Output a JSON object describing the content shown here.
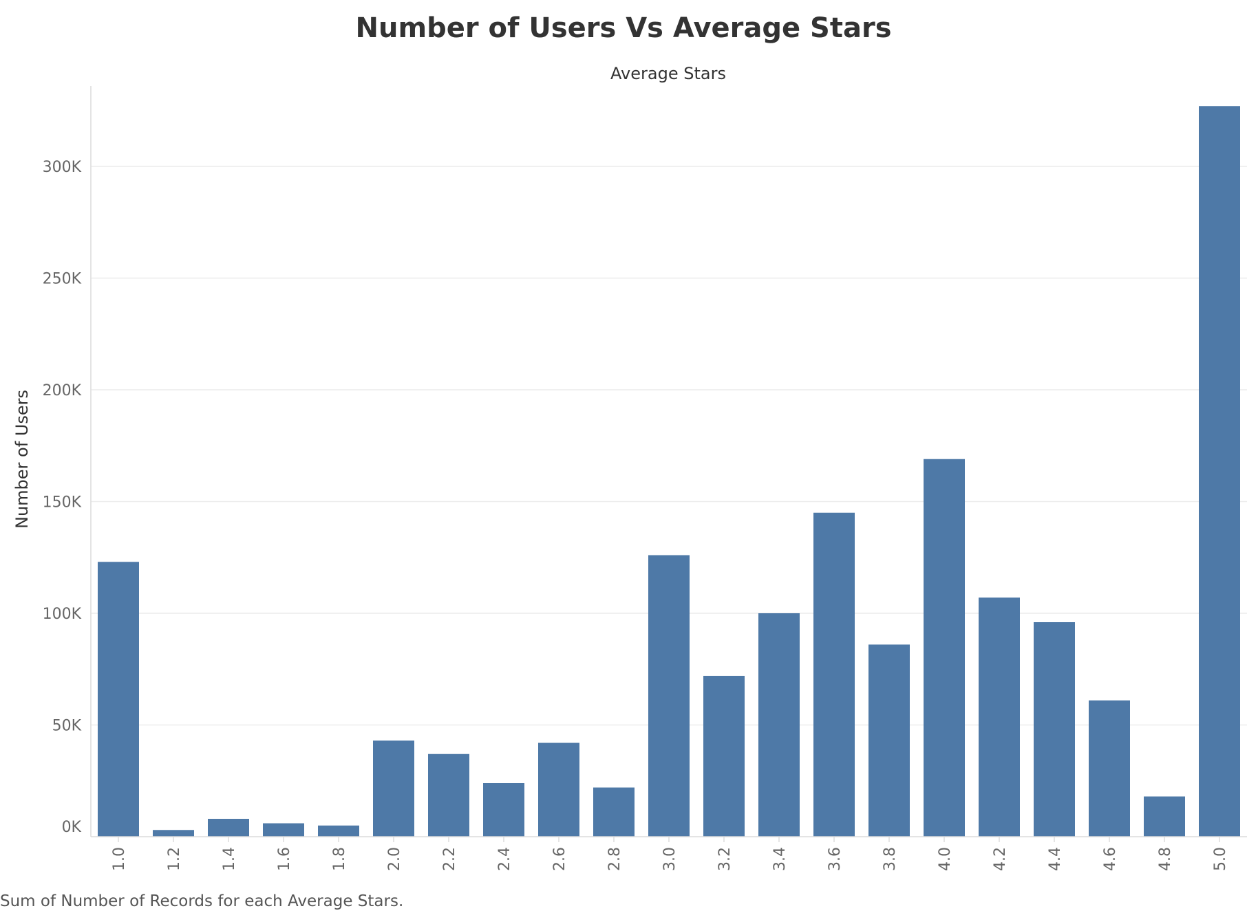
{
  "chart_data": {
    "type": "bar",
    "title": "Number of Users Vs Average Stars",
    "column_header": "Average Stars",
    "xlabel": "",
    "ylabel": "Number of Users",
    "caption": "Sum of Number of Records for each Average Stars.",
    "categories": [
      "1.0",
      "1.2",
      "1.4",
      "1.6",
      "1.8",
      "2.0",
      "2.2",
      "2.4",
      "2.6",
      "2.8",
      "3.0",
      "3.2",
      "3.4",
      "3.6",
      "3.8",
      "4.0",
      "4.2",
      "4.4",
      "4.6",
      "4.8",
      "5.0"
    ],
    "values": [
      123000,
      3000,
      8000,
      6000,
      5000,
      43000,
      37000,
      24000,
      42000,
      22000,
      126000,
      72000,
      100000,
      145000,
      86000,
      169000,
      107000,
      96000,
      61000,
      18000,
      327000
    ],
    "ylim": [
      0,
      336000
    ],
    "y_ticks": [
      {
        "value": 0,
        "label": "0K"
      },
      {
        "value": 50000,
        "label": "50K"
      },
      {
        "value": 100000,
        "label": "100K"
      },
      {
        "value": 150000,
        "label": "150K"
      },
      {
        "value": 200000,
        "label": "200K"
      },
      {
        "value": 250000,
        "label": "250K"
      },
      {
        "value": 300000,
        "label": "300K"
      }
    ],
    "grid": true,
    "legend": "none",
    "bar_color": "#4e79a7"
  }
}
